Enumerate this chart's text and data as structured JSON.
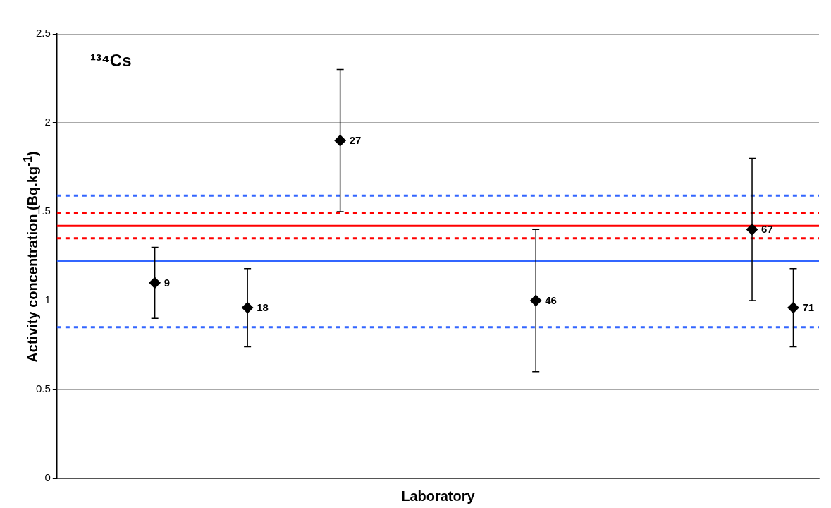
{
  "chart_data": {
    "type": "scatter",
    "title": "¹³⁴Cs",
    "xlabel": "Laboratory",
    "ylabel": "Activity concentration (Bq.kg$^{-1}$)",
    "categories": [
      null,
      null,
      null,
      null,
      null,
      null,
      null,
      null,
      null,
      null,
      null,
      null,
      null,
      null,
      null,
      null,
      null,
      null,
      null,
      null,
      null,
      null,
      null,
      null,
      null,
      null,
      null,
      null,
      null,
      null,
      null,
      null,
      null,
      null,
      null,
      null,
      null,
      null,
      null,
      null,
      null,
      null,
      null,
      null,
      null,
      null,
      null,
      null,
      null,
      null,
      null,
      null,
      null,
      null,
      null,
      null,
      null,
      null,
      null,
      null,
      null,
      null,
      null,
      null,
      null,
      null,
      null,
      null,
      null,
      null,
      null,
      null,
      null,
      null
    ],
    "series": [
      {
        "color": "#000000",
        "values": [
          null,
          null,
          null,
          null,
          null,
          null,
          null,
          null,
          null,
          1.1,
          null,
          null,
          null,
          null,
          null,
          null,
          null,
          null,
          0.96,
          null,
          null,
          null,
          null,
          null,
          null,
          null,
          null,
          1.9,
          null,
          null,
          null,
          null,
          null,
          null,
          null,
          null,
          null,
          null,
          null,
          null,
          null,
          null,
          null,
          null,
          null,
          null,
          1.0,
          null,
          null,
          null,
          null,
          null,
          null,
          null,
          null,
          null,
          null,
          null,
          null,
          null,
          null,
          null,
          null,
          null,
          null,
          null,
          null,
          1.4,
          null,
          null,
          null,
          0.96,
          null,
          null
        ],
        "errors": [
          null,
          null,
          null,
          null,
          null,
          null,
          null,
          null,
          null,
          0.2,
          null,
          null,
          null,
          null,
          null,
          null,
          null,
          null,
          0.22,
          null,
          null,
          null,
          null,
          null,
          null,
          null,
          null,
          0.4,
          null,
          null,
          null,
          null,
          null,
          null,
          null,
          null,
          null,
          null,
          null,
          null,
          null,
          null,
          null,
          null,
          null,
          null,
          0.4,
          null,
          null,
          null,
          null,
          null,
          null,
          null,
          null,
          null,
          null,
          null,
          null,
          null,
          null,
          null,
          null,
          null,
          null,
          null,
          null,
          0.4,
          null,
          null,
          null,
          0.22,
          null,
          null
        ]
      }
    ],
    "annotations": [
      "9",
      "18",
      "27",
      "46",
      "67",
      "71"
    ],
    "ylim": [
      0,
      2.5
    ],
    "yticks": [
      0,
      0.5,
      1,
      1.5,
      2,
      2.5
    ],
    "ref_lines": [
      {
        "axis": "y",
        "value": 1.59,
        "color": "#3366ff",
        "line_style": "dotted"
      },
      {
        "axis": "y",
        "value": 1.49,
        "color": "#ff0000",
        "line_style": "dotted"
      },
      {
        "axis": "y",
        "value": 1.42,
        "color": "#ff0000",
        "line_style": "solid"
      },
      {
        "axis": "y",
        "value": 1.35,
        "color": "#ff0000",
        "line_style": "dotted"
      },
      {
        "axis": "y",
        "value": 1.22,
        "color": "#3366ff",
        "line_style": "solid"
      },
      {
        "axis": "y",
        "value": 0.85,
        "color": "#3366ff",
        "line_style": "dotted"
      }
    ],
    "grid": "y",
    "legend": false,
    "tick_labels": "y",
    "marker": "diamond"
  }
}
